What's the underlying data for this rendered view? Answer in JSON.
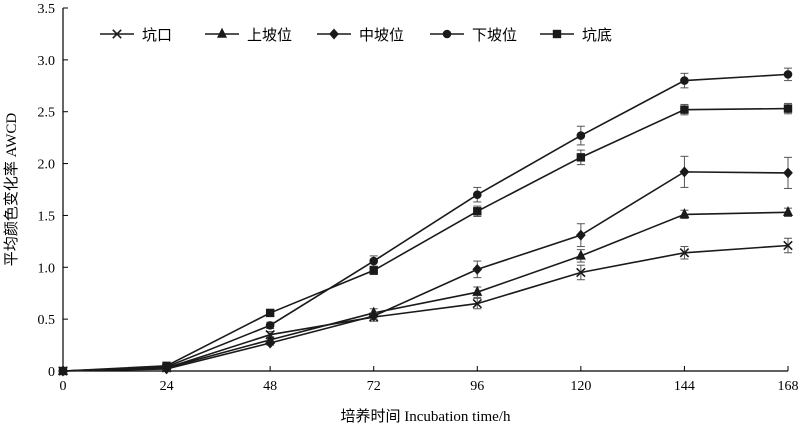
{
  "chart_data": {
    "type": "line",
    "title": "",
    "xlabel": "培养时间 Incubation time/h",
    "ylabel": "平均颜色变化率 AWCD",
    "x": [
      0,
      24,
      48,
      72,
      96,
      120,
      144,
      168
    ],
    "xticks": [
      "0",
      "24",
      "48",
      "72",
      "96",
      "120",
      "144",
      "168"
    ],
    "xlim": [
      0,
      168
    ],
    "ylim": [
      0,
      3.5
    ],
    "yticks": [
      "0",
      "0.5",
      "1.0",
      "1.5",
      "2.0",
      "2.5",
      "3.0",
      "3.5"
    ],
    "grid": false,
    "legend_position": "top",
    "series": [
      {
        "name": "坑口",
        "marker": "x",
        "values": [
          0,
          0.03,
          0.35,
          0.52,
          0.65,
          0.95,
          1.14,
          1.21
        ],
        "errors": [
          0,
          0.01,
          0.03,
          0.04,
          0.05,
          0.07,
          0.06,
          0.07
        ]
      },
      {
        "name": "上坡位",
        "marker": "triangle",
        "values": [
          0,
          0.03,
          0.3,
          0.56,
          0.76,
          1.11,
          1.51,
          1.53
        ],
        "errors": [
          0,
          0.01,
          0.03,
          0.04,
          0.05,
          0.06,
          0.04,
          0.04
        ]
      },
      {
        "name": "中坡位",
        "marker": "diamond",
        "values": [
          0,
          0.02,
          0.27,
          0.53,
          0.98,
          1.31,
          1.92,
          1.91
        ],
        "errors": [
          0,
          0.01,
          0.02,
          0.03,
          0.08,
          0.11,
          0.15,
          0.15
        ]
      },
      {
        "name": "下坡位",
        "marker": "circle",
        "values": [
          0,
          0.04,
          0.44,
          1.06,
          1.7,
          2.27,
          2.8,
          2.86
        ],
        "errors": [
          0,
          0.01,
          0.03,
          0.05,
          0.07,
          0.09,
          0.07,
          0.06
        ]
      },
      {
        "name": "坑底",
        "marker": "square",
        "values": [
          0,
          0.05,
          0.56,
          0.97,
          1.54,
          2.06,
          2.52,
          2.53
        ],
        "errors": [
          0,
          0.01,
          0.03,
          0.04,
          0.05,
          0.07,
          0.05,
          0.05
        ]
      }
    ]
  }
}
